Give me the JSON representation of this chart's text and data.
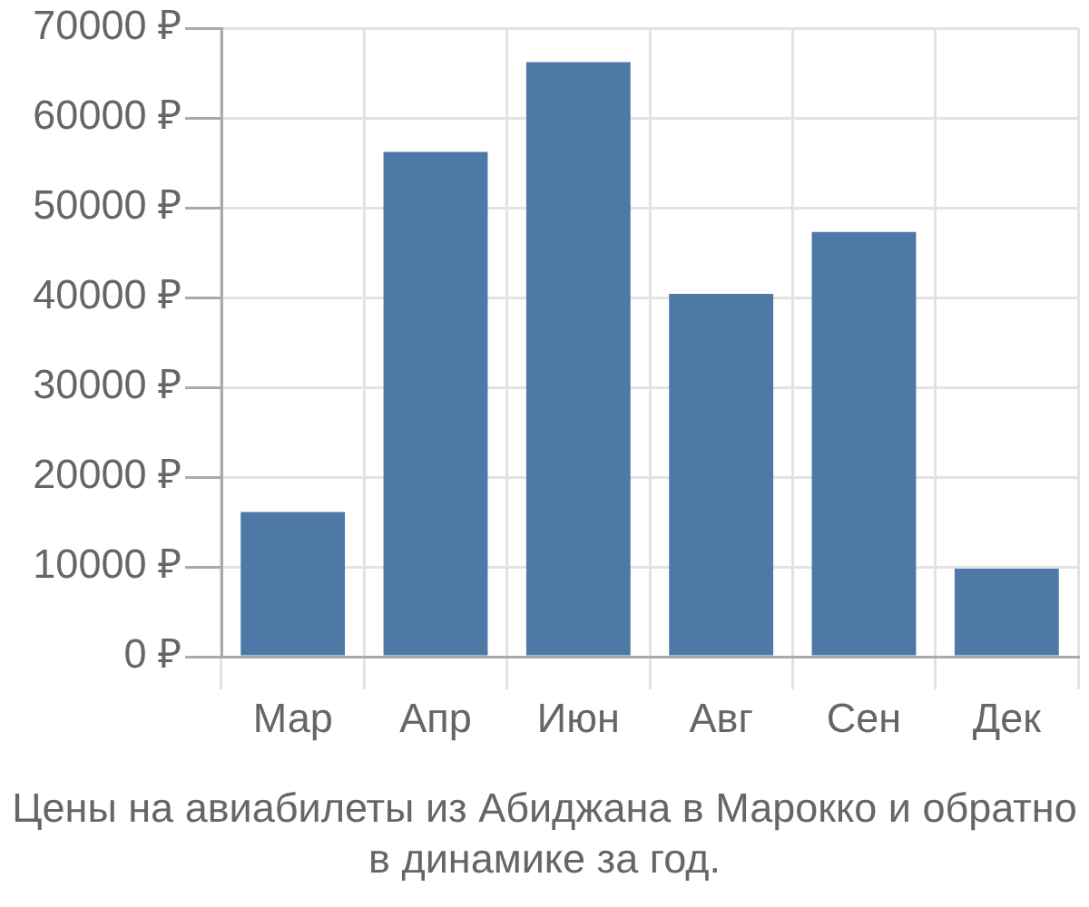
{
  "chart_data": {
    "type": "bar",
    "categories": [
      "Мар",
      "Апр",
      "Июн",
      "Авг",
      "Сен",
      "Дек"
    ],
    "values": [
      16100,
      56200,
      66200,
      40400,
      47300,
      9800
    ],
    "color": "#4e79a7",
    "ylim": [
      0,
      70000
    ],
    "yticks": [
      {
        "value": 0,
        "label": "0 ₽"
      },
      {
        "value": 10000,
        "label": "10000 ₽"
      },
      {
        "value": 20000,
        "label": "20000 ₽"
      },
      {
        "value": 30000,
        "label": "30000 ₽"
      },
      {
        "value": 40000,
        "label": "40000 ₽"
      },
      {
        "value": 50000,
        "label": "50000 ₽"
      },
      {
        "value": 60000,
        "label": "60000 ₽"
      },
      {
        "value": 70000,
        "label": "70000 ₽"
      }
    ],
    "grid": true,
    "annotations": [
      "Цены на авиабилеты из Абиджана в Марокко и обратно в динамике за год."
    ]
  }
}
